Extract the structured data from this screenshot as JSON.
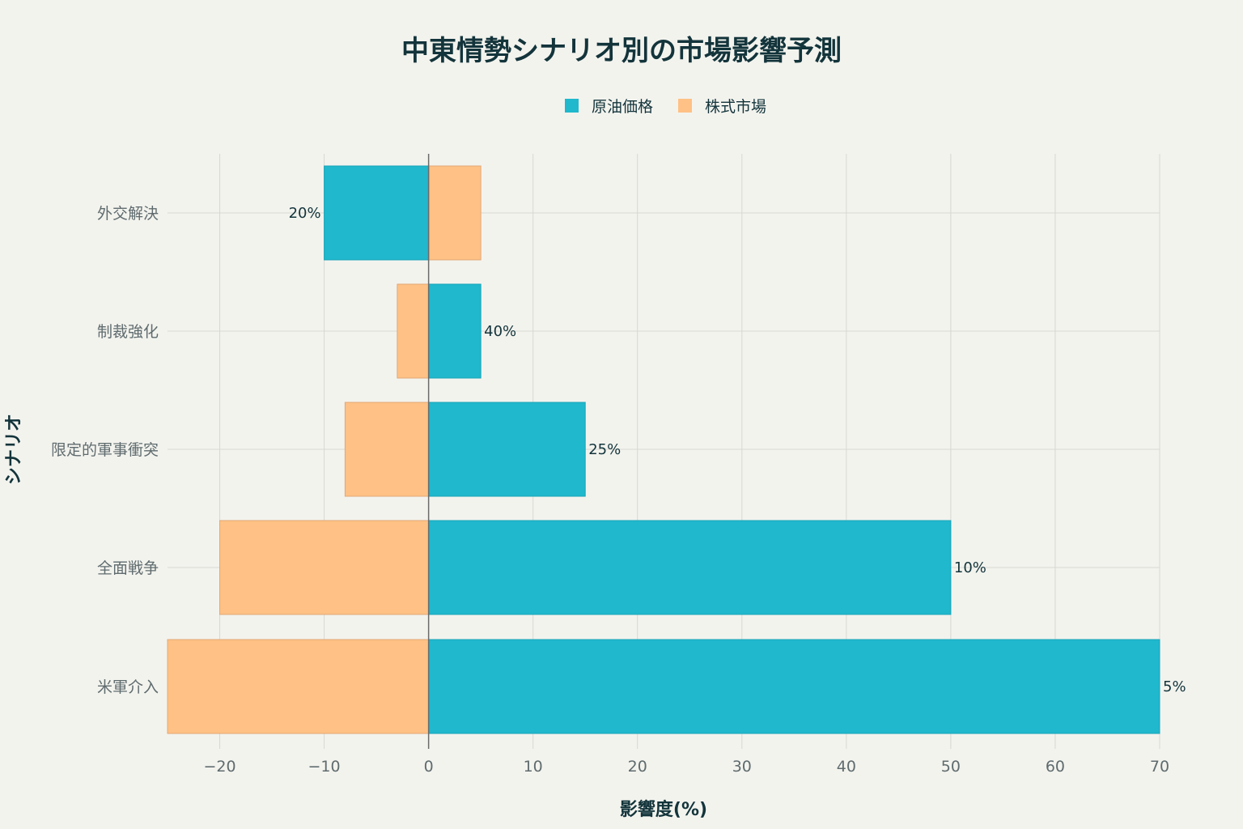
{
  "colors": {
    "background": "#f3f3ee",
    "oil": "#1fb8cd",
    "stock": "#ffc185",
    "stock_border": "#e0a878",
    "oil_border": "#1aa3b6",
    "text_dark": "#13343b",
    "text_muted": "#5f6b6e"
  },
  "chart_data": {
    "type": "bar",
    "orientation": "horizontal",
    "barmode": "overlay",
    "title": "中東情勢シナリオ別の市場影響予測",
    "xlabel": "影響度(%)",
    "ylabel": "シナリオ",
    "xlim": [
      -25,
      70
    ],
    "xticks": [
      -20,
      -10,
      0,
      10,
      20,
      30,
      40,
      50,
      60,
      70
    ],
    "xtick_labels": [
      "−20",
      "−10",
      "0",
      "10",
      "20",
      "30",
      "40",
      "50",
      "60",
      "70"
    ],
    "grid": true,
    "legend_position": "top-center",
    "categories": [
      "外交解決",
      "制裁強化",
      "限定的軍事衝突",
      "全面戦争",
      "米軍介入"
    ],
    "series": [
      {
        "name": "原油価格",
        "color": "#1fb8cd",
        "values": [
          -10,
          5,
          15,
          50,
          70
        ],
        "labels": [
          "20%",
          "40%",
          "25%",
          "10%",
          "5%"
        ]
      },
      {
        "name": "株式市場",
        "color": "#ffc185",
        "values": [
          5,
          -3,
          -8,
          -20,
          -25
        ]
      }
    ]
  }
}
